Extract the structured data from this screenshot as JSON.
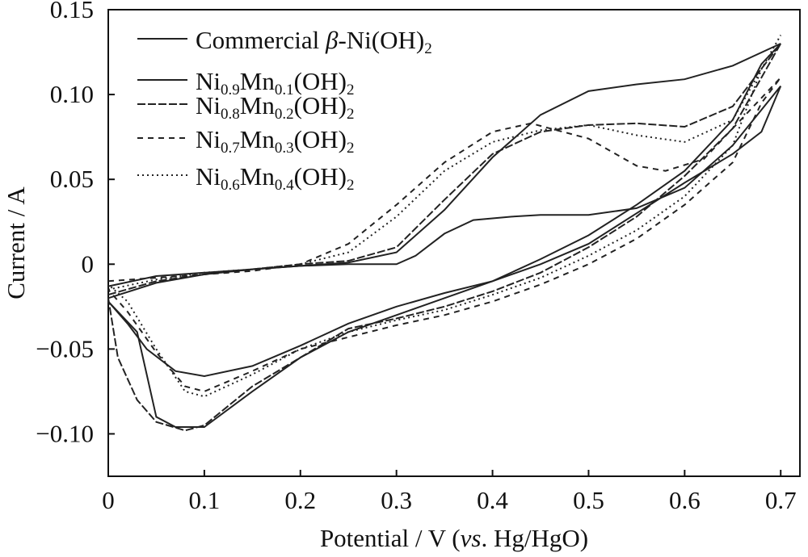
{
  "chart_data": {
    "type": "line",
    "title": "",
    "xlabel": "Potential / V (vs. Hg/HgO)",
    "ylabel": "Current / A",
    "xlim": [
      0,
      0.72
    ],
    "ylim": [
      -0.125,
      0.15
    ],
    "x_ticks": [
      {
        "value": 0,
        "label": "0"
      },
      {
        "value": 0.1,
        "label": "0.1"
      },
      {
        "value": 0.2,
        "label": "0.2"
      },
      {
        "value": 0.3,
        "label": "0.3"
      },
      {
        "value": 0.4,
        "label": "0.4"
      },
      {
        "value": 0.5,
        "label": "0.5"
      },
      {
        "value": 0.6,
        "label": "0.6"
      },
      {
        "value": 0.7,
        "label": "0.7"
      }
    ],
    "y_ticks": [
      {
        "value": 0.15,
        "label": "0.15"
      },
      {
        "value": 0.1,
        "label": "0.10"
      },
      {
        "value": 0.05,
        "label": "0.05"
      },
      {
        "value": 0,
        "label": "0"
      },
      {
        "value": -0.05,
        "label": "−0.05"
      },
      {
        "value": -0.1,
        "label": "−0.10"
      }
    ],
    "grid": false,
    "legend_position": "top-left",
    "series": [
      {
        "name": "Commercial β-Ni(OH)₂",
        "dash": "solid",
        "points": [
          [
            0.0,
            -0.013
          ],
          [
            0.05,
            -0.007
          ],
          [
            0.1,
            -0.005
          ],
          [
            0.15,
            -0.003
          ],
          [
            0.2,
            -0.001
          ],
          [
            0.25,
            0.0
          ],
          [
            0.3,
            0.0
          ],
          [
            0.32,
            0.005
          ],
          [
            0.35,
            0.018
          ],
          [
            0.38,
            0.026
          ],
          [
            0.42,
            0.028
          ],
          [
            0.45,
            0.029
          ],
          [
            0.5,
            0.029
          ],
          [
            0.55,
            0.033
          ],
          [
            0.6,
            0.045
          ],
          [
            0.65,
            0.07
          ],
          [
            0.7,
            0.105
          ],
          [
            0.68,
            0.078
          ],
          [
            0.65,
            0.065
          ],
          [
            0.6,
            0.048
          ],
          [
            0.55,
            0.03
          ],
          [
            0.5,
            0.012
          ],
          [
            0.45,
            0.0
          ],
          [
            0.4,
            -0.01
          ],
          [
            0.35,
            -0.017
          ],
          [
            0.3,
            -0.025
          ],
          [
            0.25,
            -0.035
          ],
          [
            0.2,
            -0.048
          ],
          [
            0.15,
            -0.06
          ],
          [
            0.1,
            -0.066
          ],
          [
            0.07,
            -0.063
          ],
          [
            0.04,
            -0.05
          ],
          [
            0.02,
            -0.035
          ],
          [
            0.0,
            -0.022
          ]
        ]
      },
      {
        "name": "Ni0.9Mn0.1(OH)2",
        "dash": "solid",
        "points": [
          [
            0.0,
            -0.02
          ],
          [
            0.05,
            -0.011
          ],
          [
            0.1,
            -0.006
          ],
          [
            0.15,
            -0.003
          ],
          [
            0.2,
            -0.001
          ],
          [
            0.25,
            0.001
          ],
          [
            0.3,
            0.007
          ],
          [
            0.35,
            0.032
          ],
          [
            0.4,
            0.063
          ],
          [
            0.45,
            0.088
          ],
          [
            0.5,
            0.102
          ],
          [
            0.55,
            0.106
          ],
          [
            0.6,
            0.109
          ],
          [
            0.65,
            0.117
          ],
          [
            0.7,
            0.13
          ],
          [
            0.68,
            0.118
          ],
          [
            0.65,
            0.085
          ],
          [
            0.6,
            0.055
          ],
          [
            0.55,
            0.035
          ],
          [
            0.5,
            0.017
          ],
          [
            0.45,
            0.003
          ],
          [
            0.4,
            -0.01
          ],
          [
            0.35,
            -0.02
          ],
          [
            0.3,
            -0.03
          ],
          [
            0.25,
            -0.04
          ],
          [
            0.2,
            -0.055
          ],
          [
            0.15,
            -0.075
          ],
          [
            0.1,
            -0.096
          ],
          [
            0.07,
            -0.096
          ],
          [
            0.05,
            -0.09
          ],
          [
            0.04,
            -0.065
          ],
          [
            0.03,
            -0.04
          ],
          [
            0.0,
            -0.022
          ]
        ]
      },
      {
        "name": "Ni0.8Mn0.2(OH)2",
        "dash": "long-dash",
        "points": [
          [
            0.0,
            -0.018
          ],
          [
            0.05,
            -0.01
          ],
          [
            0.1,
            -0.006
          ],
          [
            0.15,
            -0.003
          ],
          [
            0.2,
            0.0
          ],
          [
            0.25,
            0.002
          ],
          [
            0.3,
            0.01
          ],
          [
            0.35,
            0.038
          ],
          [
            0.4,
            0.065
          ],
          [
            0.45,
            0.078
          ],
          [
            0.5,
            0.082
          ],
          [
            0.55,
            0.083
          ],
          [
            0.6,
            0.081
          ],
          [
            0.65,
            0.093
          ],
          [
            0.7,
            0.13
          ],
          [
            0.68,
            0.11
          ],
          [
            0.65,
            0.08
          ],
          [
            0.6,
            0.052
          ],
          [
            0.55,
            0.028
          ],
          [
            0.5,
            0.01
          ],
          [
            0.45,
            -0.005
          ],
          [
            0.4,
            -0.016
          ],
          [
            0.35,
            -0.025
          ],
          [
            0.3,
            -0.032
          ],
          [
            0.25,
            -0.038
          ],
          [
            0.2,
            -0.055
          ],
          [
            0.15,
            -0.072
          ],
          [
            0.1,
            -0.095
          ],
          [
            0.08,
            -0.098
          ],
          [
            0.05,
            -0.093
          ],
          [
            0.03,
            -0.08
          ],
          [
            0.01,
            -0.055
          ],
          [
            0.0,
            -0.02
          ]
        ]
      },
      {
        "name": "Ni0.7Mn0.3(OH)2",
        "dash": "dashed",
        "points": [
          [
            0.0,
            -0.01
          ],
          [
            0.05,
            -0.008
          ],
          [
            0.1,
            -0.006
          ],
          [
            0.15,
            -0.004
          ],
          [
            0.2,
            0.0
          ],
          [
            0.25,
            0.012
          ],
          [
            0.3,
            0.035
          ],
          [
            0.35,
            0.06
          ],
          [
            0.4,
            0.078
          ],
          [
            0.44,
            0.083
          ],
          [
            0.5,
            0.074
          ],
          [
            0.55,
            0.058
          ],
          [
            0.58,
            0.055
          ],
          [
            0.62,
            0.062
          ],
          [
            0.65,
            0.08
          ],
          [
            0.7,
            0.11
          ],
          [
            0.68,
            0.095
          ],
          [
            0.65,
            0.06
          ],
          [
            0.6,
            0.035
          ],
          [
            0.55,
            0.015
          ],
          [
            0.5,
            0.0
          ],
          [
            0.45,
            -0.012
          ],
          [
            0.4,
            -0.022
          ],
          [
            0.35,
            -0.03
          ],
          [
            0.3,
            -0.036
          ],
          [
            0.25,
            -0.043
          ],
          [
            0.2,
            -0.05
          ],
          [
            0.15,
            -0.063
          ],
          [
            0.1,
            -0.075
          ],
          [
            0.08,
            -0.072
          ],
          [
            0.05,
            -0.052
          ],
          [
            0.02,
            -0.028
          ],
          [
            0.0,
            -0.015
          ]
        ]
      },
      {
        "name": "Ni0.6Mn0.4(OH)2",
        "dash": "dotted",
        "points": [
          [
            0.0,
            -0.015
          ],
          [
            0.05,
            -0.009
          ],
          [
            0.1,
            -0.005
          ],
          [
            0.15,
            -0.003
          ],
          [
            0.2,
            0.0
          ],
          [
            0.25,
            0.007
          ],
          [
            0.3,
            0.028
          ],
          [
            0.35,
            0.055
          ],
          [
            0.4,
            0.072
          ],
          [
            0.45,
            0.079
          ],
          [
            0.5,
            0.082
          ],
          [
            0.55,
            0.076
          ],
          [
            0.6,
            0.072
          ],
          [
            0.65,
            0.085
          ],
          [
            0.7,
            0.135
          ],
          [
            0.68,
            0.115
          ],
          [
            0.65,
            0.07
          ],
          [
            0.6,
            0.04
          ],
          [
            0.55,
            0.02
          ],
          [
            0.5,
            0.005
          ],
          [
            0.45,
            -0.008
          ],
          [
            0.4,
            -0.018
          ],
          [
            0.35,
            -0.027
          ],
          [
            0.3,
            -0.033
          ],
          [
            0.25,
            -0.04
          ],
          [
            0.2,
            -0.05
          ],
          [
            0.15,
            -0.065
          ],
          [
            0.1,
            -0.078
          ],
          [
            0.08,
            -0.075
          ],
          [
            0.05,
            -0.05
          ],
          [
            0.02,
            -0.022
          ],
          [
            0.0,
            -0.012
          ]
        ]
      }
    ]
  },
  "legend": [
    {
      "name": "Commercial β-Ni(OH)₂",
      "dash": "solid",
      "parts": [
        [
          "Commercial ",
          ""
        ],
        [
          "β",
          "i"
        ],
        [
          "-Ni(OH)",
          ""
        ],
        [
          "2",
          "sub"
        ]
      ]
    },
    {
      "name": "Ni0.9Mn0.1(OH)2",
      "dash": "solid",
      "parts": [
        [
          "Ni",
          ""
        ],
        [
          "0.9",
          "sub"
        ],
        [
          "Mn",
          ""
        ],
        [
          "0.1",
          "sub"
        ],
        [
          "(OH)",
          ""
        ],
        [
          "2",
          "sub"
        ]
      ]
    },
    {
      "name": "Ni0.8Mn0.2(OH)2",
      "dash": "long-dash",
      "parts": [
        [
          "Ni",
          ""
        ],
        [
          "0.8",
          "sub"
        ],
        [
          "Mn",
          ""
        ],
        [
          "0.2",
          "sub"
        ],
        [
          "(OH)",
          ""
        ],
        [
          "2",
          "sub"
        ]
      ]
    },
    {
      "name": "Ni0.7Mn0.3(OH)2",
      "dash": "dashed",
      "parts": [
        [
          "Ni",
          ""
        ],
        [
          "0.7",
          "sub"
        ],
        [
          "Mn",
          ""
        ],
        [
          "0.3",
          "sub"
        ],
        [
          "(OH)",
          ""
        ],
        [
          "2",
          "sub"
        ]
      ]
    },
    {
      "name": "Ni0.6Mn0.4(OH)2",
      "dash": "dotted",
      "parts": [
        [
          "Ni",
          ""
        ],
        [
          "0.6",
          "sub"
        ],
        [
          "Mn",
          ""
        ],
        [
          "0.4",
          "sub"
        ],
        [
          "(OH)",
          ""
        ],
        [
          "2",
          "sub"
        ]
      ]
    }
  ],
  "xlabel_parts": [
    [
      "Potential / V (",
      ""
    ],
    [
      "vs",
      "i"
    ],
    [
      ". Hg/HgO)",
      ""
    ]
  ]
}
